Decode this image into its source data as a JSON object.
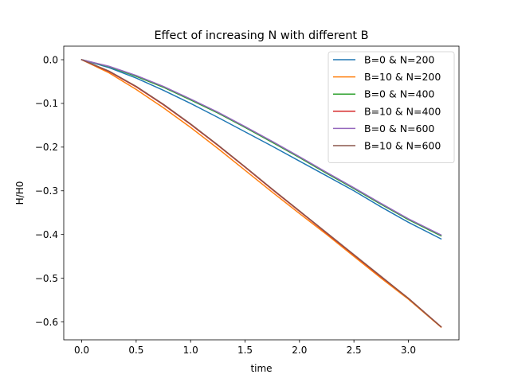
{
  "chart_data": {
    "type": "line",
    "title": "Effect of increasing N with different B",
    "xlabel": "time",
    "ylabel": "H/H0",
    "xlim": [
      -0.165,
      3.465
    ],
    "ylim": [
      -0.641,
      0.031
    ],
    "xticks": [
      0.0,
      0.5,
      1.0,
      1.5,
      2.0,
      2.5,
      3.0
    ],
    "xtick_labels": [
      "0.0",
      "0.5",
      "1.0",
      "1.5",
      "2.0",
      "2.5",
      "3.0"
    ],
    "yticks": [
      0.0,
      -0.1,
      -0.2,
      -0.3,
      -0.4,
      -0.5,
      -0.6
    ],
    "ytick_labels": [
      "0.0",
      "−0.1",
      "−0.2",
      "−0.3",
      "−0.4",
      "−0.5",
      "−0.6"
    ],
    "grid": false,
    "legend_position": "top-right",
    "x": [
      0.0,
      0.25,
      0.5,
      0.75,
      1.0,
      1.25,
      1.5,
      1.75,
      2.0,
      2.25,
      2.5,
      2.75,
      3.0,
      3.3
    ],
    "series": [
      {
        "name": "B=0 & N=200",
        "color": "#1f77b4",
        "values": [
          0.0,
          -0.018,
          -0.042,
          -0.07,
          -0.1,
          -0.132,
          -0.165,
          -0.198,
          -0.232,
          -0.266,
          -0.3,
          -0.337,
          -0.372,
          -0.41
        ]
      },
      {
        "name": "B=10 & N=200",
        "color": "#ff7f0e",
        "values": [
          0.0,
          -0.03,
          -0.068,
          -0.11,
          -0.155,
          -0.203,
          -0.253,
          -0.303,
          -0.352,
          -0.4,
          -0.45,
          -0.5,
          -0.548,
          -0.612
        ]
      },
      {
        "name": "B=0 & N=400",
        "color": "#2ca02c",
        "values": [
          0.0,
          -0.016,
          -0.038,
          -0.063,
          -0.092,
          -0.122,
          -0.155,
          -0.189,
          -0.224,
          -0.26,
          -0.295,
          -0.331,
          -0.366,
          -0.403
        ]
      },
      {
        "name": "B=10 & N=400",
        "color": "#d62728",
        "values": [
          0.0,
          -0.027,
          -0.062,
          -0.103,
          -0.148,
          -0.196,
          -0.246,
          -0.297,
          -0.347,
          -0.397,
          -0.447,
          -0.497,
          -0.546,
          -0.611
        ]
      },
      {
        "name": "B=0 & N=600",
        "color": "#9467bd",
        "values": [
          0.0,
          -0.015,
          -0.036,
          -0.061,
          -0.09,
          -0.12,
          -0.153,
          -0.187,
          -0.222,
          -0.258,
          -0.293,
          -0.329,
          -0.364,
          -0.401
        ]
      },
      {
        "name": "B=10 & N=600",
        "color": "#8c564b",
        "values": [
          0.0,
          -0.026,
          -0.061,
          -0.102,
          -0.147,
          -0.195,
          -0.245,
          -0.296,
          -0.346,
          -0.396,
          -0.446,
          -0.496,
          -0.546,
          -0.611
        ]
      }
    ]
  }
}
